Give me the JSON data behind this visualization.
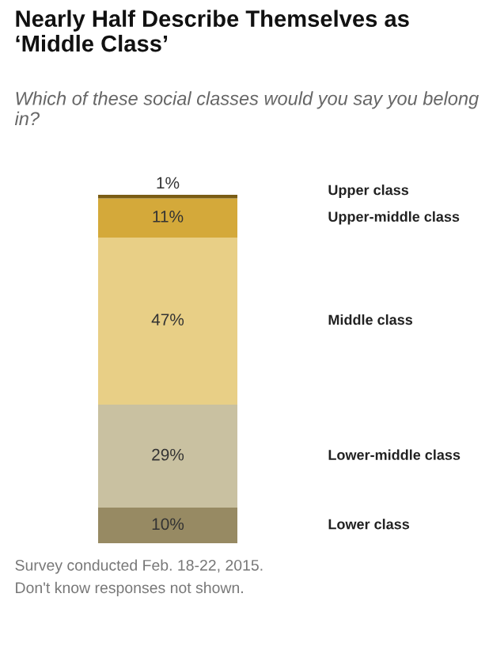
{
  "chart_data": {
    "type": "bar",
    "stacked": true,
    "title": "Nearly Half Describe Themselves as ‘Middle Class’",
    "subtitle": "Which of these social classes would you say you belong in?",
    "categories": [
      null
    ],
    "ylim": [
      0,
      98
    ],
    "series": [
      {
        "name": "Lower class",
        "color": "#978a63",
        "values": [
          10
        ],
        "value_labels": [
          "10%"
        ]
      },
      {
        "name": "Lower-middle class",
        "color": "#c9c1a1",
        "values": [
          29
        ],
        "value_labels": [
          "29%"
        ]
      },
      {
        "name": "Middle class",
        "color": "#e8cf86",
        "values": [
          47
        ],
        "value_labels": [
          "47%"
        ]
      },
      {
        "name": "Upper-middle class",
        "color": "#d4a93a",
        "values": [
          11
        ],
        "value_labels": [
          "11%"
        ]
      },
      {
        "name": "Upper class",
        "color": "#7a5c14",
        "values": [
          1
        ],
        "value_labels": [
          "1%"
        ]
      }
    ],
    "annotations": [
      "Survey conducted Feb. 18-22, 2015.",
      "Don't know responses not shown."
    ]
  }
}
